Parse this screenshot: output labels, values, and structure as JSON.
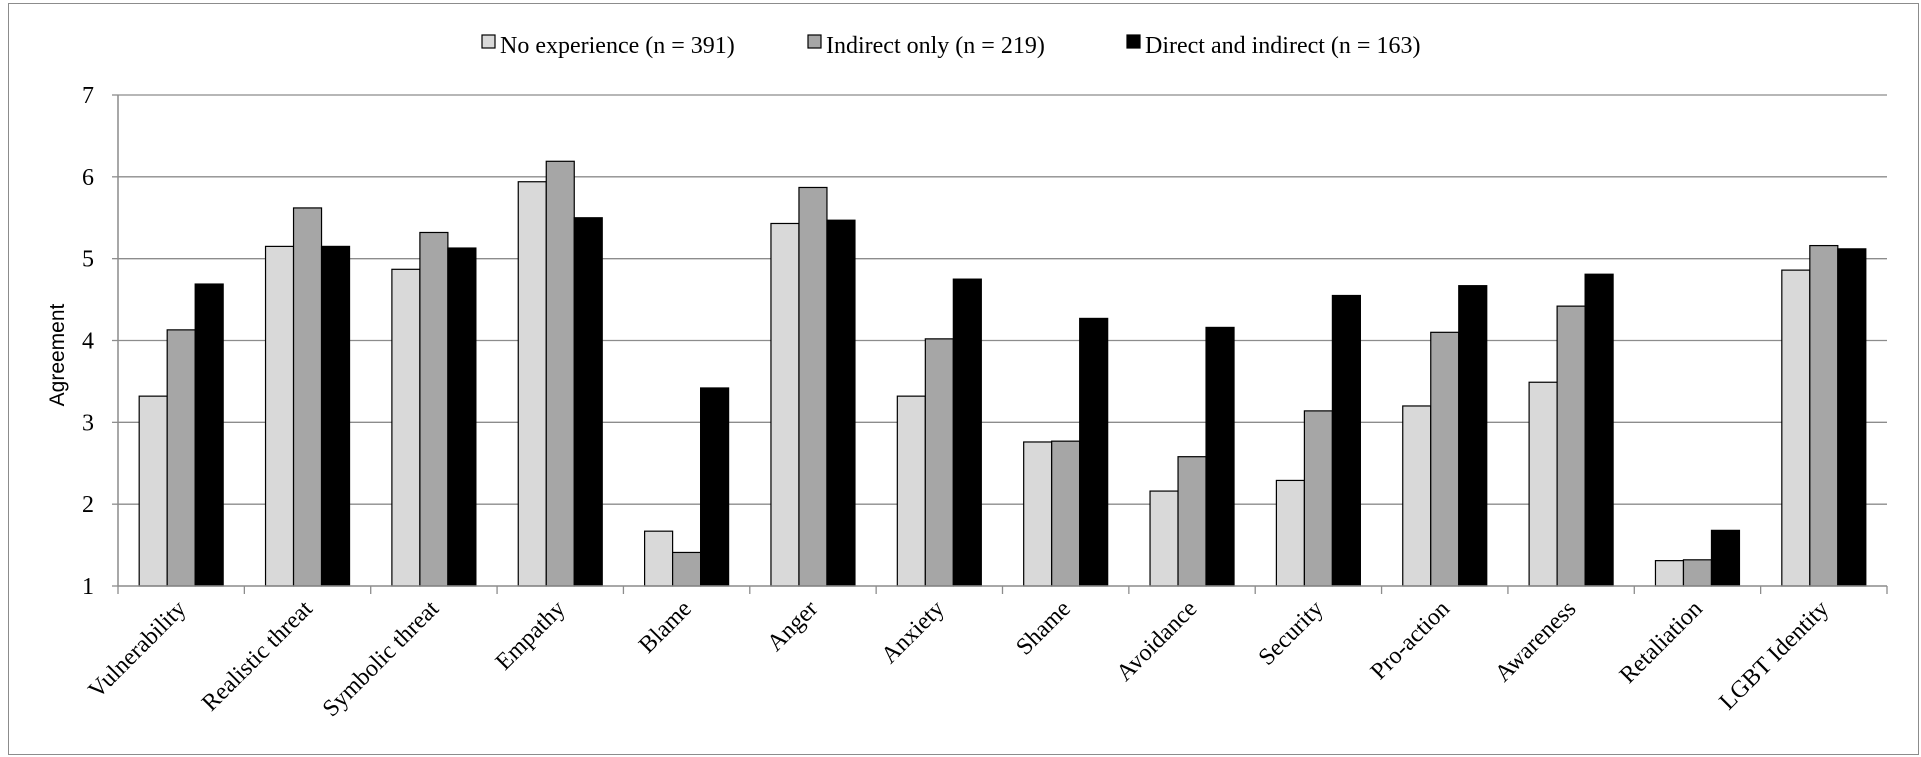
{
  "chart_data": {
    "type": "bar",
    "title": "",
    "xlabel": "",
    "ylabel": "Agreement",
    "ylim": [
      1,
      7
    ],
    "yticks": [
      "1",
      "2",
      "3",
      "4",
      "5",
      "6",
      "7"
    ],
    "grid": true,
    "legend_position": "top-center",
    "categories": [
      "Vulnerability",
      "Realistic threat",
      "Symbolic threat",
      "Empathy",
      "Blame",
      "Anger",
      "Anxiety",
      "Shame",
      "Avoidance",
      "Security",
      "Pro-action",
      "Awareness",
      "Retaliation",
      "LGBT Identity"
    ],
    "series": [
      {
        "name": "No experience (n = 391)",
        "color": "#d9d9d9",
        "values": [
          3.32,
          5.15,
          4.87,
          5.94,
          1.67,
          5.43,
          3.32,
          2.76,
          2.16,
          2.29,
          3.2,
          3.49,
          1.31,
          4.86
        ]
      },
      {
        "name": "Indirect only (n = 219)",
        "color": "#a6a6a6",
        "values": [
          4.13,
          5.62,
          5.32,
          6.19,
          1.41,
          5.87,
          4.02,
          2.77,
          2.58,
          3.14,
          4.1,
          4.42,
          1.32,
          5.16
        ]
      },
      {
        "name": "Direct and indirect (n = 163)",
        "color": "#000000",
        "values": [
          4.69,
          5.15,
          5.13,
          5.5,
          3.42,
          5.47,
          4.75,
          4.27,
          4.16,
          4.55,
          4.67,
          4.81,
          1.68,
          5.12
        ]
      }
    ]
  }
}
